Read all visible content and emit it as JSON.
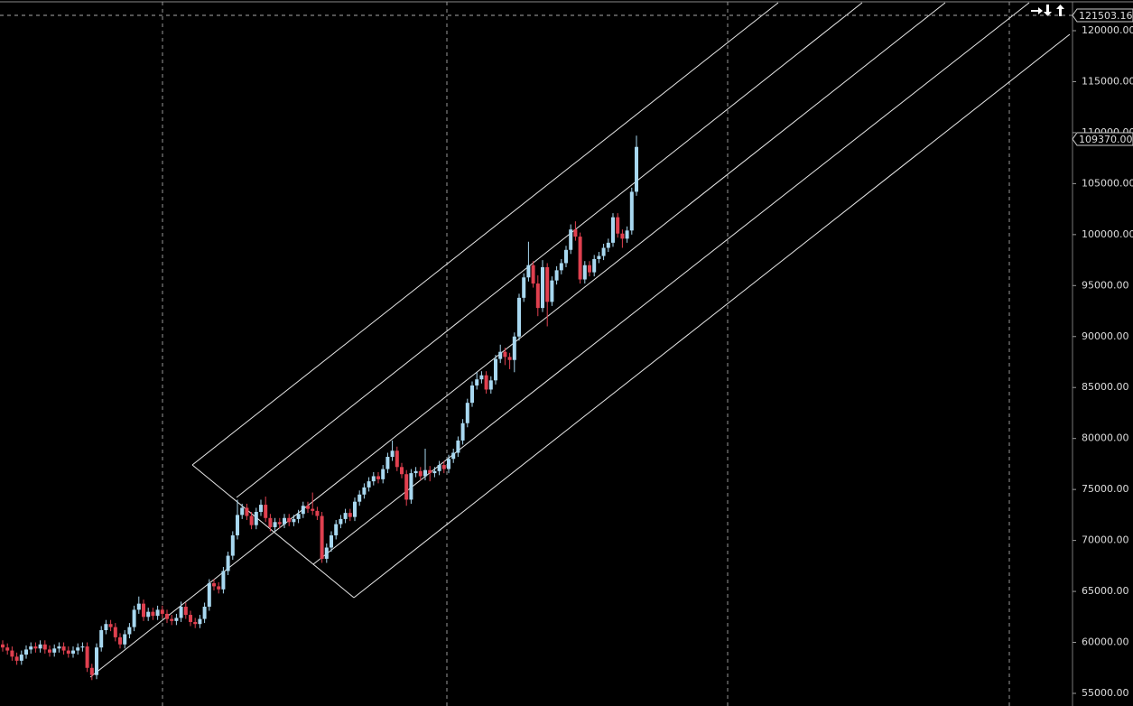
{
  "chart_data": {
    "type": "candlestick",
    "up_color": "#a8d8f0",
    "down_color": "#e0404f",
    "ylim": [
      53760,
      123010
    ],
    "yticks": [
      {
        "value": 55000,
        "label": "55000.00"
      },
      {
        "value": 60000,
        "label": "60000.00"
      },
      {
        "value": 65000,
        "label": "65000.00"
      },
      {
        "value": 70000,
        "label": "70000.00"
      },
      {
        "value": 75000,
        "label": "75000.00"
      },
      {
        "value": 80000,
        "label": "80000.00"
      },
      {
        "value": 85000,
        "label": "85000.00"
      },
      {
        "value": 90000,
        "label": "90000.00"
      },
      {
        "value": 95000,
        "label": "95000.00"
      },
      {
        "value": 100000,
        "label": "100000.00"
      },
      {
        "value": 105000,
        "label": "105000.00"
      },
      {
        "value": 110000,
        "label": "110000.00"
      },
      {
        "value": 115000,
        "label": "115000.00"
      },
      {
        "value": 120000,
        "label": "120000.00"
      }
    ],
    "price_markers": [
      {
        "value": 121503.16,
        "label": "121503.16"
      },
      {
        "value": 109370,
        "label": "109370.00"
      }
    ],
    "open": [
      59800,
      59500,
      59200,
      58600,
      58200,
      58800,
      59300,
      59600,
      59400,
      59800,
      59300,
      59000,
      59400,
      59600,
      59200,
      58900,
      59200,
      59500,
      59600,
      57500,
      56800,
      59500,
      61200,
      61800,
      61500,
      60500,
      59800,
      60800,
      61500,
      63200,
      63800,
      62500,
      63000,
      62600,
      63200,
      62800,
      62300,
      62100,
      62400,
      63500,
      62700,
      62000,
      61800,
      62300,
      63500,
      65800,
      65500,
      65200,
      67000,
      68500,
      70500,
      72500,
      73200,
      72400,
      71500,
      72800,
      73500,
      72200,
      71300,
      71800,
      71600,
      72200,
      71800,
      72100,
      72600,
      73400,
      73100,
      72900,
      72400,
      68200,
      69300,
      70500,
      71600,
      72100,
      72700,
      72300,
      73800,
      74500,
      75200,
      75800,
      76300,
      76000,
      77000,
      78200,
      78800,
      77200,
      76500,
      74000,
      76600,
      76800,
      76300,
      76900,
      76600,
      76800,
      77400,
      77000,
      78000,
      78600,
      79800,
      81500,
      83500,
      85200,
      85800,
      86200,
      84800,
      85700,
      87800,
      88500,
      88000,
      87700,
      90000,
      93800,
      95800,
      97000,
      95200,
      92800,
      96800,
      93400,
      95500,
      96500,
      97200,
      98500,
      100500,
      99800,
      95600,
      97000,
      96300,
      97600,
      97900,
      98700,
      99200,
      101700,
      100100,
      99600,
      100400,
      104200
    ],
    "high": [
      60200,
      59900,
      59600,
      59000,
      59200,
      59700,
      60000,
      60000,
      60200,
      60200,
      59700,
      59800,
      60000,
      60000,
      59600,
      59600,
      59900,
      60000,
      60000,
      57900,
      59900,
      61600,
      62200,
      62200,
      61900,
      60900,
      61200,
      61900,
      63600,
      64500,
      64200,
      63400,
      63400,
      63600,
      63600,
      63200,
      62700,
      62800,
      64000,
      63900,
      63100,
      62400,
      62700,
      63900,
      66200,
      66200,
      65900,
      67400,
      68900,
      70900,
      74000,
      73600,
      73600,
      72800,
      73200,
      74000,
      74300,
      72600,
      72200,
      72200,
      72600,
      72600,
      72500,
      73000,
      73800,
      73800,
      74700,
      73300,
      72800,
      69700,
      70900,
      72000,
      72500,
      73100,
      73100,
      74200,
      74900,
      75600,
      76200,
      76700,
      76700,
      77400,
      78600,
      79800,
      79200,
      77600,
      76900,
      77000,
      77200,
      77200,
      79000,
      77300,
      77200,
      77800,
      77800,
      78400,
      79000,
      80200,
      81900,
      83900,
      85600,
      86500,
      86600,
      86600,
      86100,
      88200,
      89200,
      88900,
      88400,
      90400,
      94200,
      96200,
      99300,
      97400,
      96000,
      97500,
      97200,
      95900,
      96900,
      97600,
      98900,
      101000,
      101300,
      100200,
      97400,
      97400,
      98000,
      98300,
      99100,
      99600,
      102100,
      102100,
      100500,
      100800,
      104600,
      109700
    ],
    "low": [
      59100,
      58800,
      58200,
      57800,
      57800,
      58400,
      58900,
      59000,
      59000,
      58900,
      58600,
      58600,
      59000,
      58800,
      58500,
      58500,
      58800,
      59100,
      57100,
      56300,
      56400,
      59100,
      60800,
      61100,
      60100,
      59400,
      59400,
      60400,
      61100,
      62800,
      62100,
      62100,
      62200,
      62200,
      62400,
      61900,
      61700,
      61700,
      62000,
      62300,
      61600,
      61400,
      61400,
      61900,
      63100,
      65100,
      64800,
      64800,
      66600,
      68100,
      70100,
      72100,
      72000,
      71100,
      71100,
      72400,
      71800,
      70900,
      70900,
      71200,
      71200,
      71400,
      71400,
      71700,
      72200,
      72700,
      72500,
      72000,
      67800,
      67800,
      68900,
      70100,
      71200,
      71700,
      71900,
      71900,
      73400,
      74100,
      74800,
      75400,
      75600,
      75600,
      76600,
      77800,
      76800,
      76100,
      73400,
      73600,
      76200,
      75900,
      75900,
      75800,
      76200,
      76400,
      76600,
      76600,
      77600,
      78200,
      79400,
      81100,
      83100,
      84800,
      85400,
      84400,
      84400,
      85300,
      87400,
      87200,
      86800,
      86500,
      89600,
      93400,
      95400,
      94800,
      92000,
      92400,
      91000,
      93000,
      95100,
      96100,
      96800,
      98100,
      99400,
      95200,
      95200,
      95900,
      95900,
      97200,
      97500,
      98300,
      98800,
      99700,
      98700,
      99200,
      100000,
      103800
    ],
    "close": [
      59500,
      59200,
      58600,
      58200,
      58800,
      59300,
      59600,
      59400,
      59800,
      59300,
      59000,
      59400,
      59600,
      59200,
      58900,
      59200,
      59500,
      59600,
      57500,
      56800,
      59500,
      61200,
      61800,
      61500,
      60500,
      59800,
      60800,
      61500,
      63200,
      63800,
      62500,
      63000,
      62600,
      63200,
      62800,
      62300,
      62100,
      62400,
      63500,
      62700,
      62000,
      61800,
      62300,
      63500,
      65800,
      65500,
      65200,
      67000,
      68500,
      70500,
      72500,
      73200,
      72400,
      71500,
      72800,
      73500,
      72200,
      71300,
      71800,
      71600,
      72200,
      71800,
      72100,
      72600,
      73400,
      73100,
      72900,
      72400,
      68200,
      69300,
      70500,
      71600,
      72100,
      72700,
      72300,
      73800,
      74500,
      75200,
      75800,
      76300,
      76000,
      77000,
      78200,
      78800,
      77200,
      76500,
      74000,
      76600,
      76800,
      76300,
      76900,
      76600,
      76800,
      77400,
      77000,
      78000,
      78600,
      79800,
      81500,
      83500,
      85200,
      85800,
      86200,
      84800,
      85700,
      87800,
      88500,
      88000,
      87700,
      90000,
      93800,
      95800,
      97000,
      95200,
      92800,
      96800,
      93400,
      95500,
      96500,
      97200,
      98500,
      100500,
      99800,
      95600,
      97000,
      96300,
      97600,
      97900,
      98700,
      99200,
      101700,
      100100,
      99600,
      100400,
      104200,
      108600
    ]
  }
}
